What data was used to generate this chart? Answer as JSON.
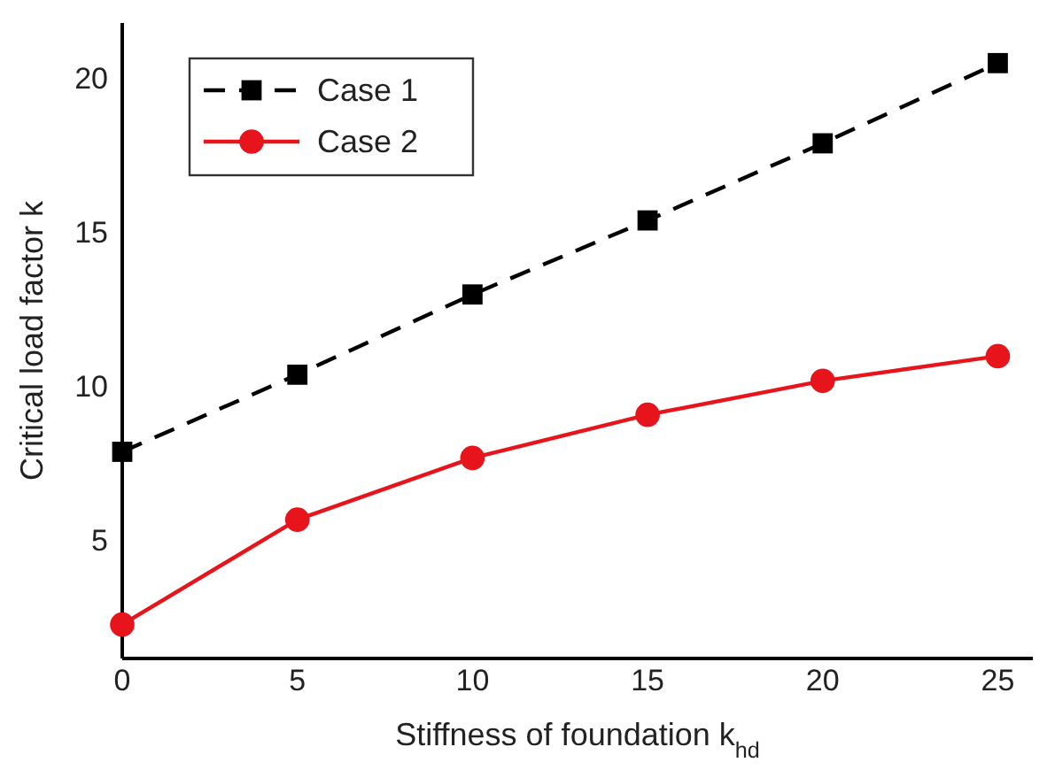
{
  "chart_data": {
    "type": "line",
    "xlabel": "Stiffness of foundation k$_{hd}$",
    "ylabel": "Critical load factor k",
    "x": [
      0,
      5,
      10,
      15,
      20,
      25
    ],
    "series": [
      {
        "name": "Case 1",
        "color": "#000000",
        "values": [
          7.9,
          10.4,
          13.0,
          15.4,
          17.9,
          20.5
        ],
        "marker": "square",
        "line_style": "dashed"
      },
      {
        "name": "Case 2",
        "color": "#e8141c",
        "values": [
          2.3,
          5.7,
          7.7,
          9.1,
          10.2,
          11.0
        ],
        "marker": "circle",
        "line_style": "solid"
      }
    ],
    "xlim": [
      0,
      26
    ],
    "xticks": [
      0,
      5,
      10,
      15,
      20,
      25
    ],
    "ylim": [
      1.2,
      21.8
    ],
    "yticks": [
      5,
      10,
      15,
      20
    ],
    "grid": false,
    "legend": "top left"
  }
}
